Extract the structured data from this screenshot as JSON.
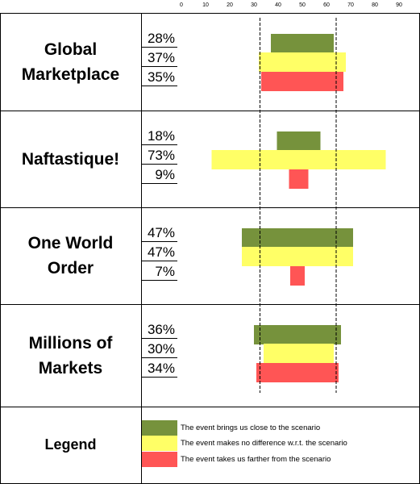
{
  "chart_data": {
    "type": "bar",
    "orientation": "horizontal-centered",
    "x_ticks": [
      0,
      10,
      20,
      30,
      40,
      50,
      60,
      70,
      80,
      90
    ],
    "xlim": [
      0,
      90
    ],
    "reference_lines": [
      32.5,
      64
    ],
    "colors": {
      "close": "#76923c",
      "no_difference": "#ffff66",
      "farther": "#ff5555"
    },
    "scenarios": [
      {
        "label": "Global Marketplace",
        "values": [
          {
            "category": "close",
            "percent": "28%",
            "center": 50,
            "width": 26
          },
          {
            "category": "no_difference",
            "percent": "37%",
            "center": 50,
            "width": 36
          },
          {
            "category": "farther",
            "percent": "35%",
            "center": 50,
            "width": 34
          }
        ]
      },
      {
        "label": "Naftastique!",
        "values": [
          {
            "category": "close",
            "percent": "18%",
            "center": 48.5,
            "width": 18
          },
          {
            "category": "no_difference",
            "percent": "73%",
            "center": 48.5,
            "width": 72
          },
          {
            "category": "farther",
            "percent": "9%",
            "center": 48.5,
            "width": 8
          }
        ]
      },
      {
        "label": "One World Order",
        "values": [
          {
            "category": "close",
            "percent": "47%",
            "center": 48,
            "width": 46
          },
          {
            "category": "no_difference",
            "percent": "47%",
            "center": 48,
            "width": 46
          },
          {
            "category": "farther",
            "percent": "7%",
            "center": 48,
            "width": 6
          }
        ]
      },
      {
        "label": "Millions of Markets",
        "values": [
          {
            "category": "close",
            "percent": "36%",
            "center": 48,
            "width": 36
          },
          {
            "category": "no_difference",
            "percent": "30%",
            "center": 48.5,
            "width": 29
          },
          {
            "category": "farther",
            "percent": "34%",
            "center": 48,
            "width": 34
          }
        ]
      }
    ],
    "legend": {
      "title": "Legend",
      "entries": [
        {
          "category": "close",
          "label": "The event brings us close to the scenario"
        },
        {
          "category": "no_difference",
          "label": "The event makes no difference w.r.t. the scenario"
        },
        {
          "category": "farther",
          "label": "The event takes us farther from the scenario"
        }
      ]
    }
  }
}
